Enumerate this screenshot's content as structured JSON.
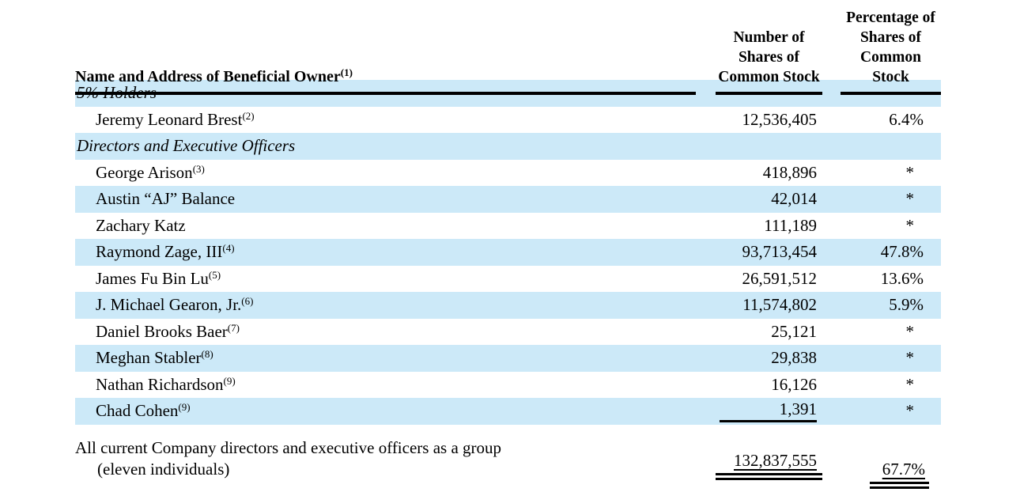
{
  "columns": {
    "name": {
      "label": "Name and Address of Beneficial Owner",
      "sup": "(1)"
    },
    "shares_lines": [
      "Number of",
      "Shares of",
      "Common Stock"
    ],
    "pct_lines": [
      "Percentage of",
      "Shares of",
      "Common Stock"
    ]
  },
  "rows": [
    {
      "type": "section",
      "label": "5% Holders"
    },
    {
      "type": "holder",
      "name": "Jeremy Leonard Brest",
      "sup": "(2)",
      "shares": "12,536,405",
      "pct": "6.4%"
    },
    {
      "type": "section",
      "label": "Directors and Executive Officers"
    },
    {
      "type": "holder",
      "name": "George Arison",
      "sup": "(3)",
      "shares": "418,896",
      "pct": "*"
    },
    {
      "type": "holder",
      "name": "Austin “AJ” Balance",
      "sup": "",
      "shares": "42,014",
      "pct": "*"
    },
    {
      "type": "holder",
      "name": "Zachary Katz",
      "sup": "",
      "shares": "111,189",
      "pct": "*"
    },
    {
      "type": "holder",
      "name": "Raymond Zage, III",
      "sup": "(4)",
      "shares": "93,713,454",
      "pct": "47.8%"
    },
    {
      "type": "holder",
      "name": "James Fu Bin Lu",
      "sup": "(5)",
      "shares": "26,591,512",
      "pct": "13.6%"
    },
    {
      "type": "holder",
      "name": "J. Michael Gearon, Jr.",
      "sup": "(6)",
      "shares": "11,574,802",
      "pct": "5.9%"
    },
    {
      "type": "holder",
      "name": "Daniel Brooks Baer",
      "sup": "(7)",
      "shares": "25,121",
      "pct": "*"
    },
    {
      "type": "holder",
      "name": "Meghan Stabler",
      "sup": "(8)",
      "shares": "29,838",
      "pct": "*"
    },
    {
      "type": "holder",
      "name": "Nathan Richardson",
      "sup": "(9)",
      "shares": "16,126",
      "pct": "*"
    },
    {
      "type": "holder",
      "name": "Chad Cohen",
      "sup": "(9)",
      "shares": "1,391",
      "pct": "*"
    }
  ],
  "total": {
    "label_line1": "All current Company directors and executive officers as a group",
    "label_line2": "(eleven individuals)",
    "shares": "132,837,555",
    "pct": "67.7%"
  },
  "colors": {
    "row_highlight": "#cce9f8",
    "rule": "#000000"
  }
}
